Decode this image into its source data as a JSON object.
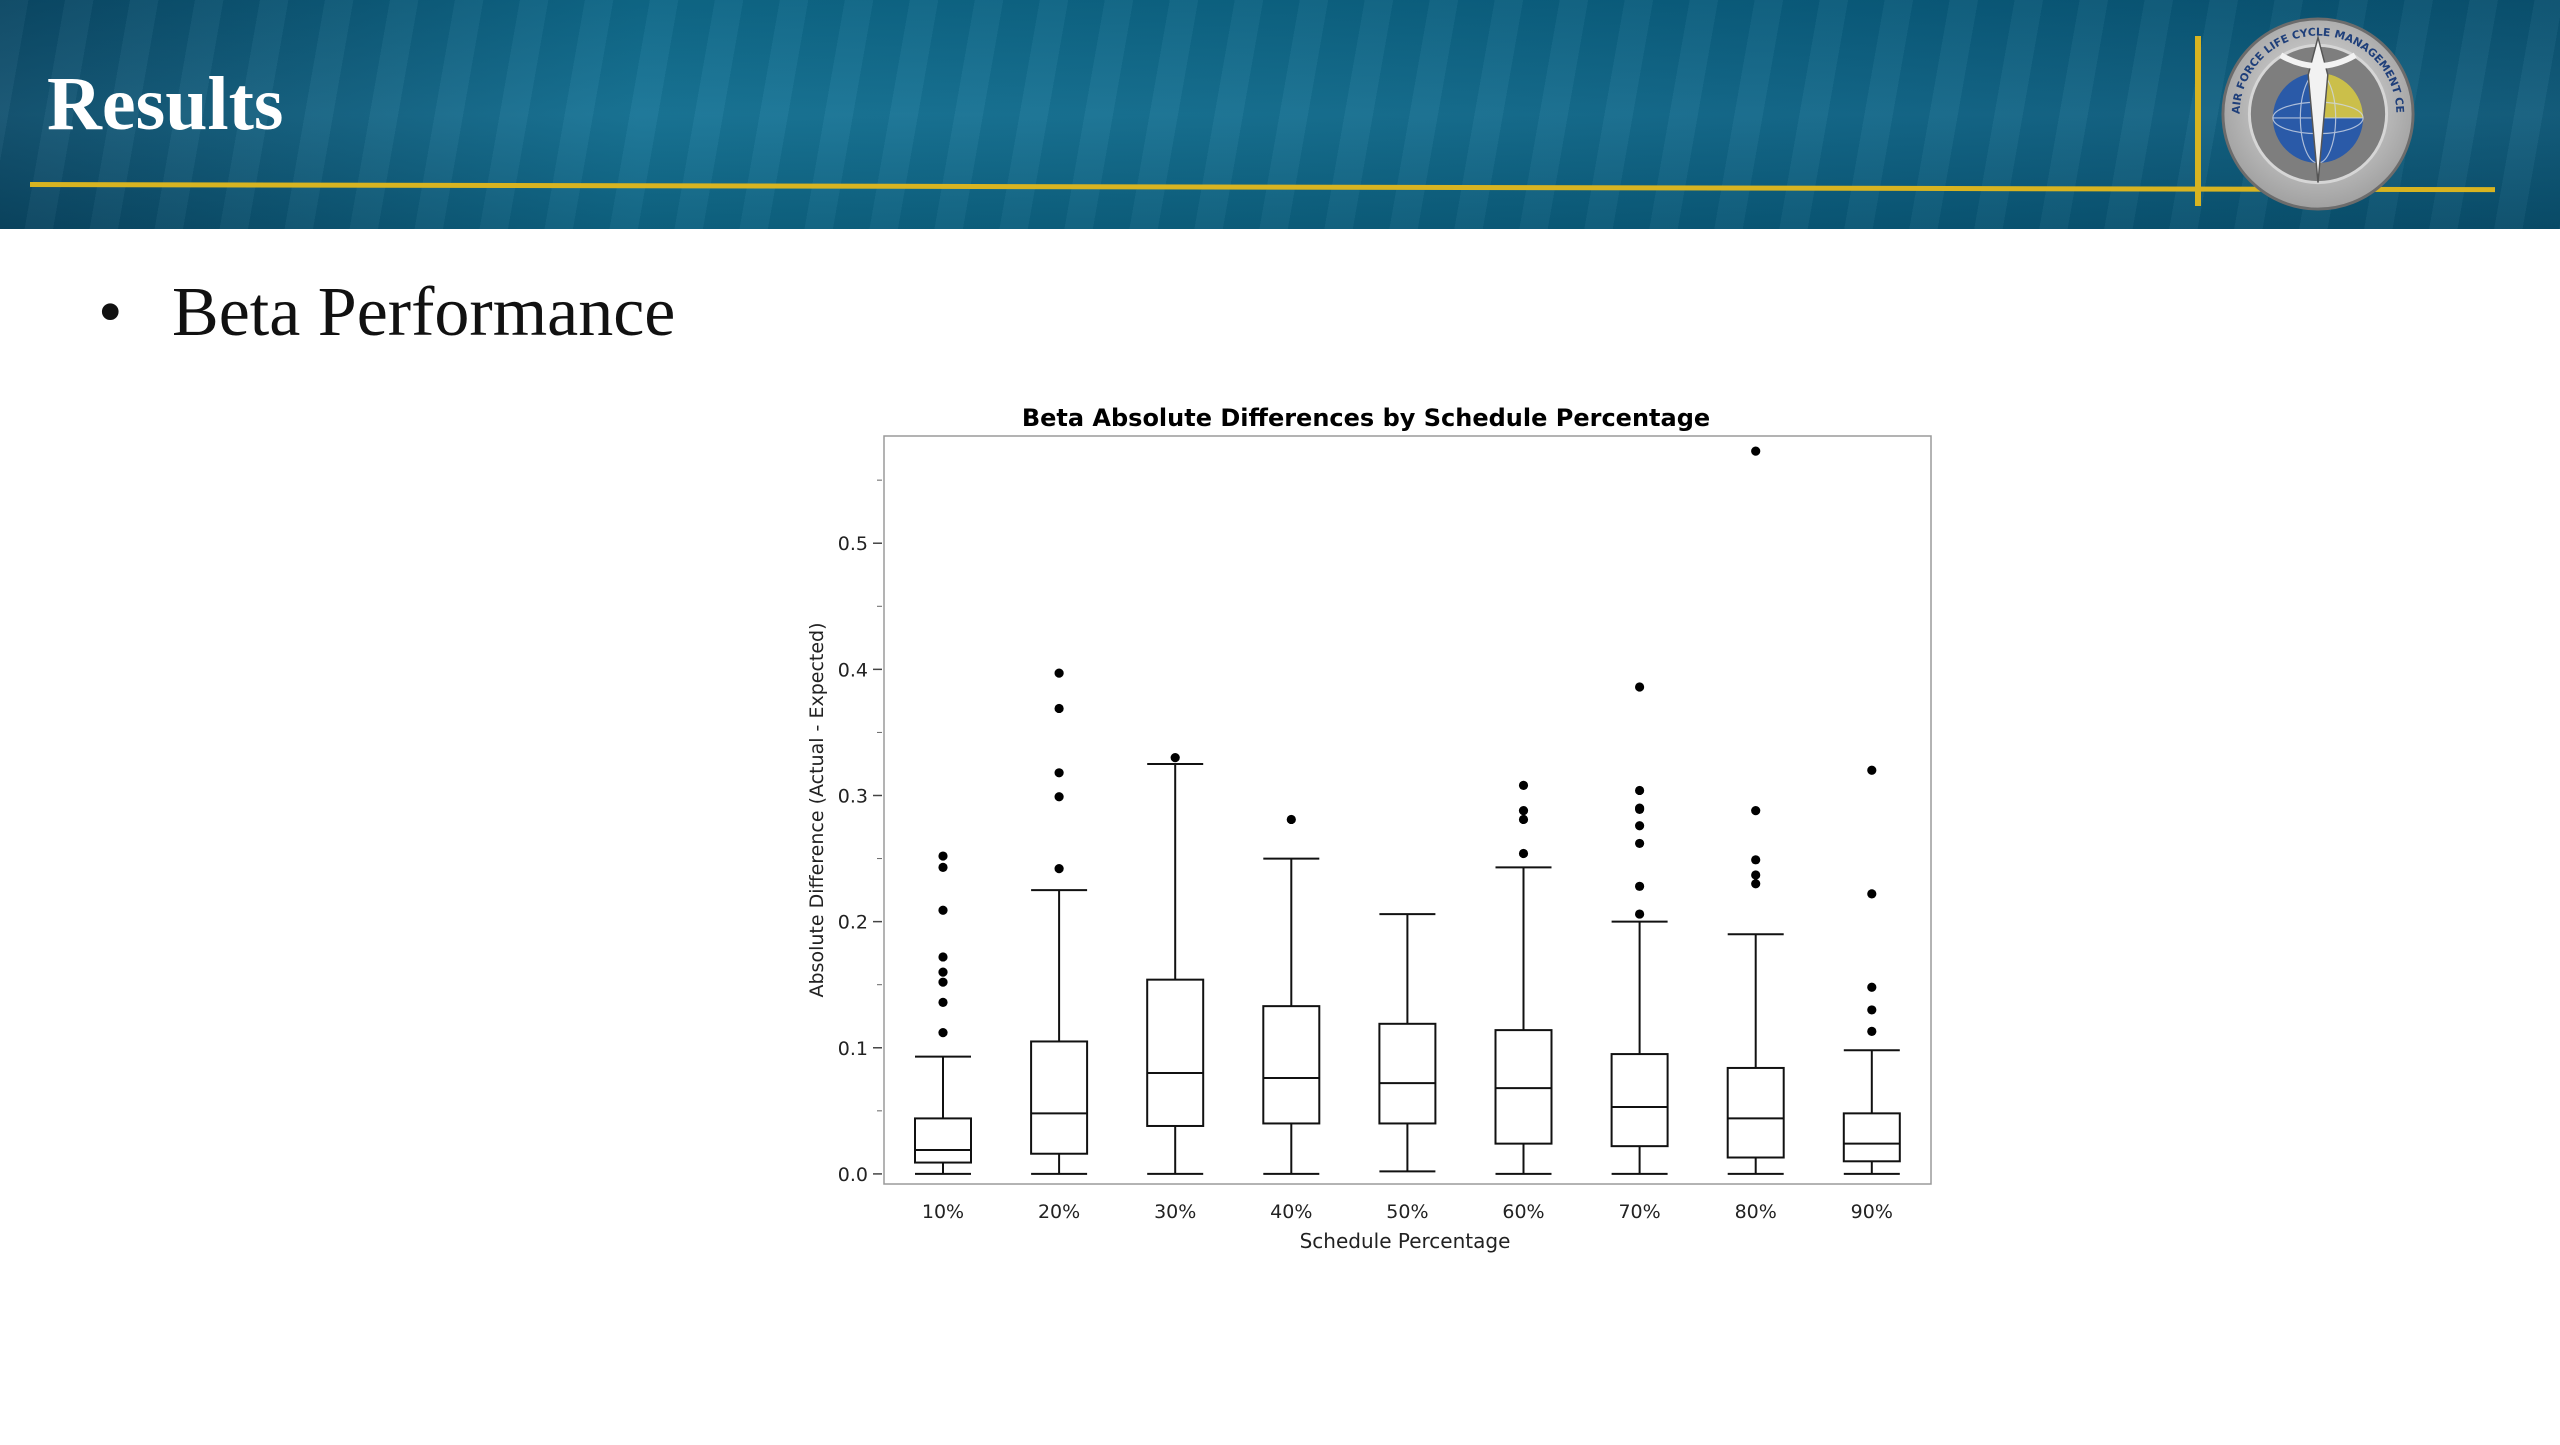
{
  "slide": {
    "title": "Results",
    "bullet_symbol": "•",
    "bullet_text": "Beta Performance",
    "seal_text": "AIR FORCE LIFE CYCLE MANAGEMENT CENTER",
    "colors": {
      "header": "#0d6a8c",
      "gold": "#d8b421"
    }
  },
  "chart_data": {
    "type": "boxplot",
    "title": "Beta Absolute Differences by Schedule Percentage",
    "xlabel": "Schedule Percentage",
    "ylabel": "Absolute Difference (Actual - Expected)",
    "ylim": [
      -0.008,
      0.585
    ],
    "yticks": [
      0.0,
      0.1,
      0.2,
      0.3,
      0.4,
      0.5
    ],
    "ytick_labels": [
      "0.0",
      "0.1",
      "0.2",
      "0.3",
      "0.4",
      "0.5"
    ],
    "categories": [
      "10%",
      "20%",
      "30%",
      "40%",
      "50%",
      "60%",
      "70%",
      "80%",
      "90%"
    ],
    "grid": false,
    "legend": "none",
    "boxes": [
      {
        "whisker_low": 0.0,
        "q1": 0.009,
        "median": 0.019,
        "q3": 0.044,
        "whisker_high": 0.093,
        "outliers": [
          0.112,
          0.136,
          0.152,
          0.16,
          0.172,
          0.209,
          0.243,
          0.252
        ]
      },
      {
        "whisker_low": 0.0,
        "q1": 0.016,
        "median": 0.048,
        "q3": 0.105,
        "whisker_high": 0.225,
        "outliers": [
          0.242,
          0.299,
          0.318,
          0.369,
          0.397
        ]
      },
      {
        "whisker_low": 0.0,
        "q1": 0.038,
        "median": 0.08,
        "q3": 0.154,
        "whisker_high": 0.325,
        "outliers": [
          0.33
        ]
      },
      {
        "whisker_low": 0.0,
        "q1": 0.04,
        "median": 0.076,
        "q3": 0.133,
        "whisker_high": 0.25,
        "outliers": [
          0.281
        ]
      },
      {
        "whisker_low": 0.002,
        "q1": 0.04,
        "median": 0.072,
        "q3": 0.119,
        "whisker_high": 0.206,
        "outliers": []
      },
      {
        "whisker_low": 0.0,
        "q1": 0.024,
        "median": 0.068,
        "q3": 0.114,
        "whisker_high": 0.243,
        "outliers": [
          0.254,
          0.281,
          0.288,
          0.308
        ]
      },
      {
        "whisker_low": 0.0,
        "q1": 0.022,
        "median": 0.053,
        "q3": 0.095,
        "whisker_high": 0.2,
        "outliers": [
          0.206,
          0.228,
          0.262,
          0.276,
          0.289,
          0.29,
          0.304,
          0.386
        ]
      },
      {
        "whisker_low": 0.0,
        "q1": 0.013,
        "median": 0.044,
        "q3": 0.084,
        "whisker_high": 0.19,
        "outliers": [
          0.23,
          0.237,
          0.249,
          0.288,
          0.573
        ]
      },
      {
        "whisker_low": 0.0,
        "q1": 0.01,
        "median": 0.024,
        "q3": 0.048,
        "whisker_high": 0.098,
        "outliers": [
          0.113,
          0.13,
          0.148,
          0.222,
          0.32
        ]
      }
    ]
  }
}
